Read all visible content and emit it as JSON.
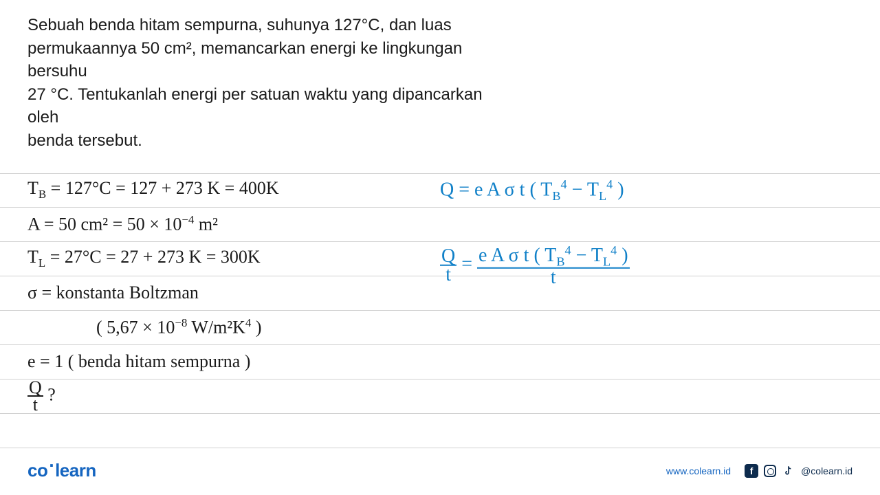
{
  "question": {
    "line1": "Sebuah benda hitam sempurna, suhunya 127°C, dan luas",
    "line2": "permukaannya 50 cm², memancarkan energi ke lingkungan bersuhu",
    "line3": "27 °C. Tentukanlah energi per satuan waktu yang dipancarkan oleh",
    "line4": "benda tersebut."
  },
  "work": {
    "row1_left": "T<sub>B</sub> = 127°C = 127 + 273 K = 400K",
    "row1_right": "Q = e A σ t ( T<sub>B</sub><sup>4</sup> − T<sub>L</sub><sup>4</sup> )",
    "row2_left": "A = 50 cm² = 50 × 10<sup>−4</sup> m²",
    "row3_left": "T<sub>L</sub> = 27°C = 27 + 273 K = 300K",
    "row3_right_num": "Q",
    "row3_right_den": "t",
    "row3_right_eq": " = ",
    "row3_right_rhs_num": "e A σ t ( T<sub>B</sub><sup>4</sup> − T<sub>L</sub><sup>4</sup> )",
    "row3_right_rhs_den": "t",
    "row4_left": "σ = konstanta Boltzman",
    "row5_left": "( 5,67 × 10<sup>−8</sup> W/m²K<sup>4</sup> )",
    "row6_left": "e = 1  ( benda hitam sempurna )",
    "row7_num": "Q",
    "row7_den": "t",
    "row7_q": " ?"
  },
  "footer": {
    "logo_co": "co",
    "logo_dot": "·",
    "logo_learn": "learn",
    "website": "www.colearn.id",
    "handle": "@colearn.id"
  },
  "colors": {
    "text": "#1a1a1a",
    "handwrite_blue": "#1080c8",
    "line": "#d0d0d0",
    "brand": "#1565c0",
    "social": "#0d2b4d",
    "background": "#ffffff"
  }
}
